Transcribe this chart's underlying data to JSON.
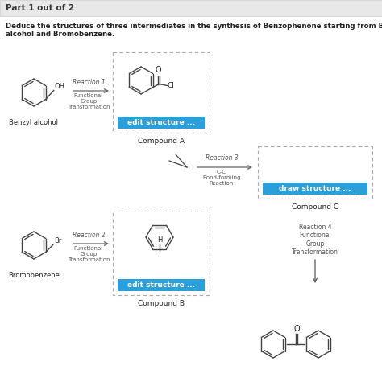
{
  "title_header": "Part 1 out of 2",
  "main_text_line1": "Deduce the structures of three intermediates in the synthesis of Benzophenone starting from Benzyl",
  "main_text_line2": "alcohol and Bromobenzene.",
  "background_color": "#ffffff",
  "header_bg": "#e8e8e8",
  "button_color": "#2B9FD9",
  "button_text_color": "#ffffff",
  "button1_text": "edit structure ...",
  "button2_text": "edit structure ...",
  "button3_text": "draw structure ...",
  "compound_a_label": "Compound A",
  "compound_b_label": "Compound B",
  "compound_c_label": "Compound C",
  "benzyl_label": "Benzyl alcohol",
  "bromo_label": "Bromobenzene",
  "reaction1_text": "Reaction 1",
  "reaction1_sub": "Functional\nGroup\nTransformation",
  "reaction2_text": "Reaction 2",
  "reaction2_sub": "Functional\nGroup\nTransformation",
  "reaction3_text": "Reaction 3",
  "reaction3_sub": "C-C\nBond-forming\nReaction",
  "reaction4_text": "Reaction 4\nFunctional\nGroup\nTransformation",
  "text_color": "#222222",
  "dash_border_color": "#a0a0a0",
  "mol_color": "#444444",
  "label_color": "#555555"
}
